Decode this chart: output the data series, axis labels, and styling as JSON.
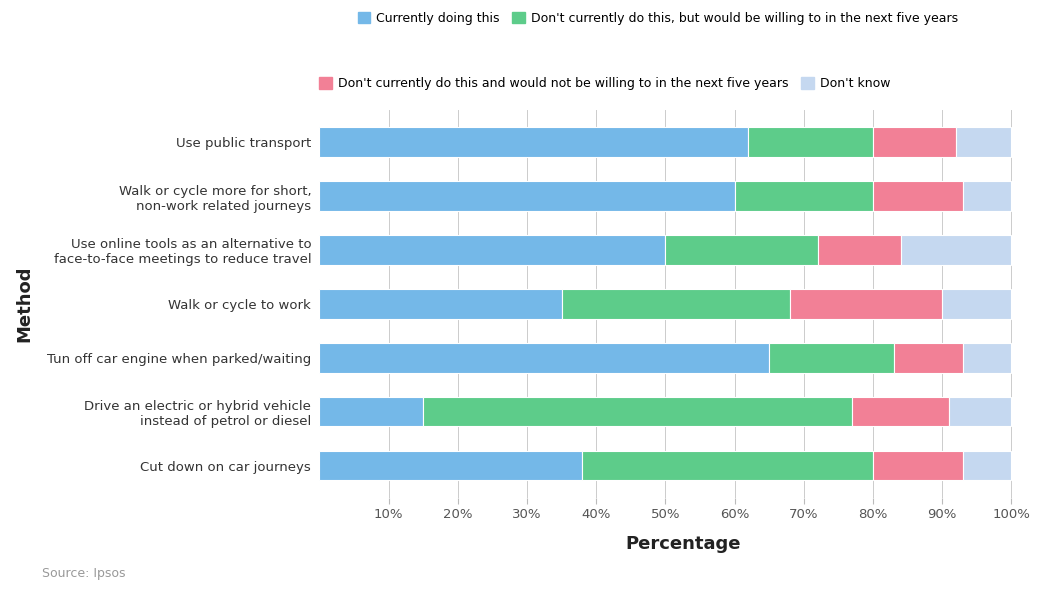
{
  "categories": [
    "Use public transport",
    "Walk or cycle more for short,\nnon-work related journeys",
    "Use online tools as an alternative to\nface-to-face meetings to reduce travel",
    "Walk or cycle to work",
    "Tun off car engine when parked/waiting",
    "Drive an electric or hybrid vehicle\ninstead of petrol or diesel",
    "Cut down on car journeys"
  ],
  "series": {
    "Currently doing this": [
      62,
      60,
      50,
      35,
      65,
      15,
      38
    ],
    "Don't currently do this, but would be willing to in the next five years": [
      18,
      20,
      22,
      33,
      18,
      62,
      42
    ],
    "Don't currently do this and would not be willing to in the next five years": [
      12,
      13,
      12,
      22,
      10,
      14,
      13
    ],
    "Don't know": [
      8,
      7,
      16,
      10,
      7,
      9,
      7
    ]
  },
  "colors": {
    "Currently doing this": "#74b8e8",
    "Don't currently do this, but would be willing to in the next five years": "#5dcc8a",
    "Don't currently do this and would not be willing to in the next five years": "#f28096",
    "Don't know": "#c5d8f0"
  },
  "xlabel": "Percentage",
  "ylabel": "Method",
  "xticks": [
    10,
    20,
    30,
    40,
    50,
    60,
    70,
    80,
    90,
    100
  ],
  "xtick_labels": [
    "10%",
    "20%",
    "30%",
    "40%",
    "50%",
    "60%",
    "70%",
    "80%",
    "90%",
    "100%"
  ],
  "source": "Source: Ipsos",
  "background_color": "#ffffff",
  "legend_fontsize": 9,
  "axis_fontsize": 9.5,
  "xlabel_fontsize": 13,
  "ylabel_fontsize": 13
}
